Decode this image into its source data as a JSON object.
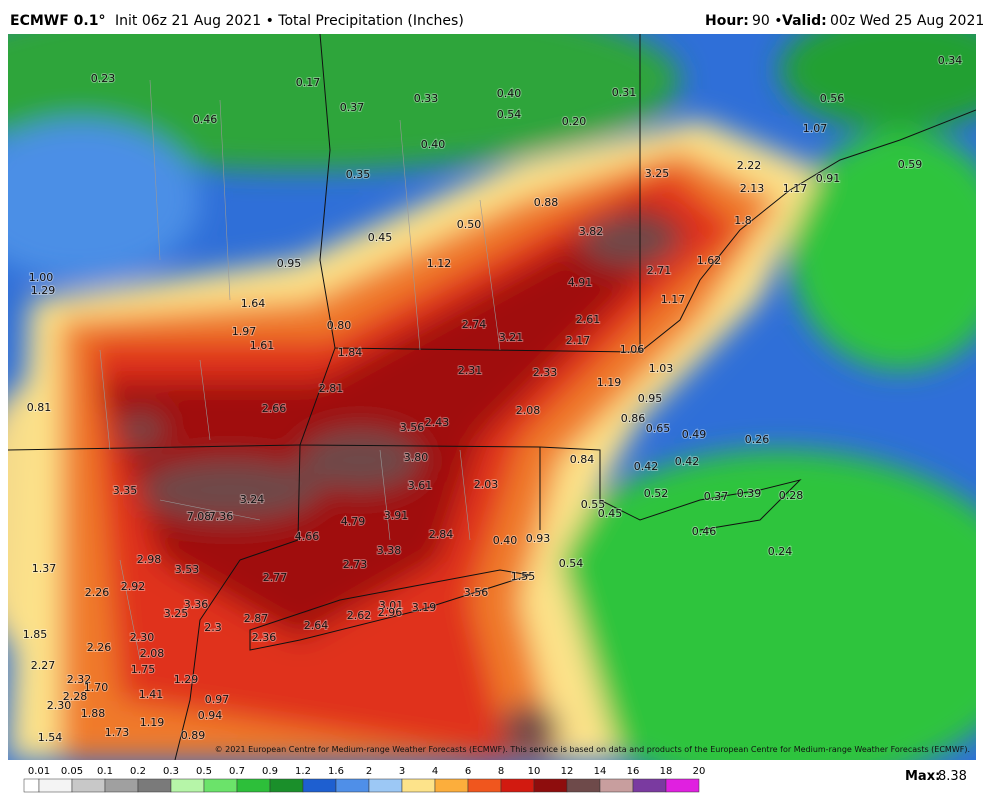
{
  "header": {
    "model": "ECMWF 0.1°",
    "info": "Init 06z 21 Aug 2021 • Total Precipitation (Inches)",
    "hour_label": "Hour:",
    "hour": "90 •",
    "valid_label": "Valid:",
    "valid": "00z Wed 25 Aug 2021"
  },
  "copyright": "© 2021 European Centre for Medium-range Weather Forecasts (ECMWF). This service is based on data and products of the European Centre for Medium-range Weather Forecasts (ECMWF).",
  "map_labels": [
    "0.23",
    "0.17",
    "0.37",
    "0.33",
    "0.40",
    "0.54",
    "0.31",
    "0.34",
    "0.56",
    "1.07",
    "0.46",
    "0.20",
    "0.40",
    "0.35",
    "3.25",
    "2.22",
    "2.13",
    "1.17",
    "0.91",
    "0.59",
    "0.88",
    "0.50",
    "0.45",
    "3.82",
    "1.8",
    "0.95",
    "1.12",
    "2.71",
    "1.62",
    "1.00",
    "1.29",
    "4.91",
    "1.17",
    "1.64",
    "0.80",
    "2.74",
    "3.21",
    "2.61",
    "1.97",
    "2.17",
    "1.61",
    "1.84",
    "1.06",
    "1.03",
    "2.31",
    "2.33",
    "1.19",
    "2.81",
    "0.81",
    "2.66",
    "0.95",
    "2.08",
    "0.86",
    "3.56",
    "2.43",
    "0.65",
    "0.49",
    "0.26",
    "3.80",
    "0.84",
    "0.42",
    "0.42",
    "3.35",
    "3.61",
    "2.03",
    "0.52",
    "0.37",
    "0.39",
    "0.28",
    "3.24",
    "7.08",
    "7.36",
    "4.79",
    "3.91",
    "0.55",
    "0.45",
    "2.84",
    "0.46",
    "4.66",
    "0.40",
    "0.93",
    "3.38",
    "0.24",
    "2.98",
    "2.73",
    "0.54",
    "1.37",
    "3.53",
    "2.77",
    "1.55",
    "2.92",
    "3.56",
    "2.26",
    "3.36",
    "3.01",
    "3.19",
    "2.96",
    "3.25",
    "2.62",
    "2.87",
    "2.64",
    "2.3",
    "1.85",
    "2.30",
    "2.36",
    "2.26",
    "2.08",
    "2.27",
    "1.75",
    "1.29",
    "2.32",
    "1.70",
    "1.41",
    "2.28",
    "0.97",
    "2.30",
    "1.88",
    "0.94",
    "1.19",
    "1.54",
    "1.73",
    "0.89"
  ],
  "colorbar": {
    "labels": [
      "0.01",
      "0.05",
      "0.1",
      "0.2",
      "0.3",
      "0.5",
      "0.7",
      "0.9",
      "1.2",
      "1.6",
      "2",
      "3",
      "4",
      "6",
      "8",
      "10",
      "12",
      "14",
      "16",
      "18",
      "20"
    ],
    "colors": [
      "#f4f4f4",
      "#c8c8c8",
      "#a0a0a0",
      "#7a7a7a",
      "#b6f5a8",
      "#6be36a",
      "#2dbf3a",
      "#1a8f2a",
      "#1e5fd0",
      "#4f8fe8",
      "#9cc8f5",
      "#fde38a",
      "#fcae3c",
      "#f0561e",
      "#d21a10",
      "#8e0d0d",
      "#6e4a4a",
      "#c89e9e",
      "#7a3aa0",
      "#e020e0"
    ]
  },
  "max_label": "Max:",
  "max": "8.38"
}
